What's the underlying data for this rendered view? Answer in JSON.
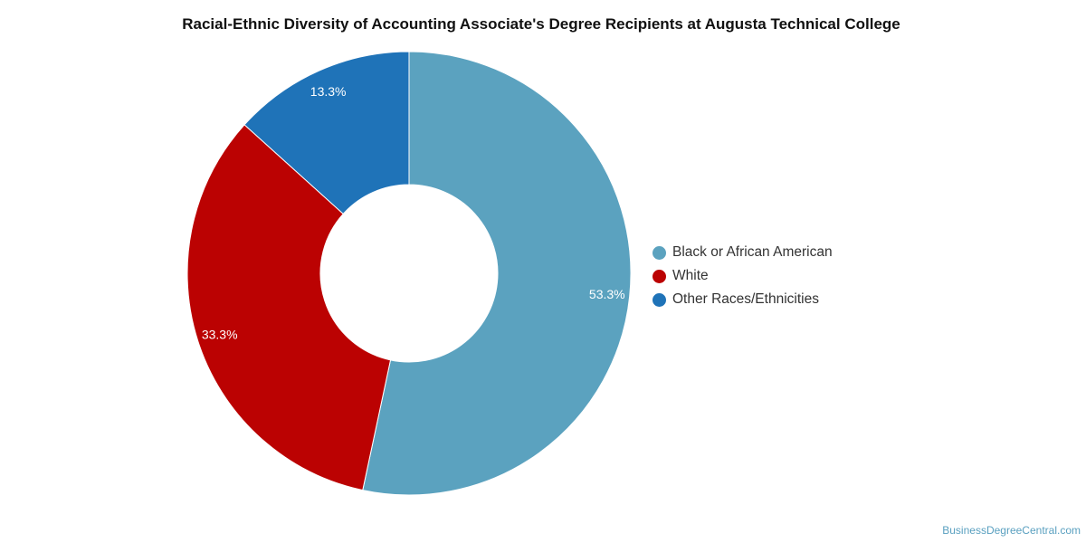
{
  "chart_data": {
    "type": "pie",
    "title": "Racial-Ethnic Diversity of Accounting Associate's Degree Recipients at Augusta Technical College",
    "series": [
      {
        "name": "Black or African American",
        "value": 53.3,
        "label": "53.3%",
        "color": "#5ba2bf"
      },
      {
        "name": "White",
        "value": 33.3,
        "label": "33.3%",
        "color": "#bb0202"
      },
      {
        "name": "Other Races/Ethnicities",
        "value": 13.3,
        "label": "13.3%",
        "color": "#1f73b8"
      }
    ],
    "donut": true,
    "legend_position": "right"
  },
  "watermark": "BusinessDegreeCentral.com"
}
